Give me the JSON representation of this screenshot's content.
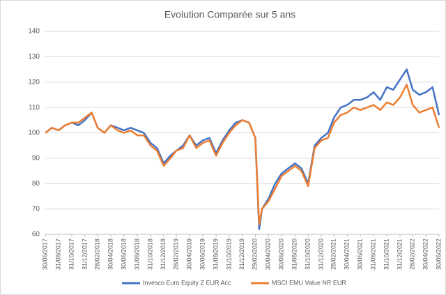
{
  "chart_data": {
    "type": "line",
    "title": "Evolution Comparée sur 5 ans",
    "x": [
      "30/06/2017",
      "31/07/2017",
      "31/08/2017",
      "30/09/2017",
      "31/10/2017",
      "30/11/2017",
      "31/12/2017",
      "31/01/2018",
      "28/02/2018",
      "31/03/2018",
      "30/04/2018",
      "31/05/2018",
      "30/06/2018",
      "31/07/2018",
      "31/08/2018",
      "30/09/2018",
      "31/10/2018",
      "30/11/2018",
      "31/12/2018",
      "31/01/2019",
      "28/02/2019",
      "31/03/2019",
      "30/04/2019",
      "31/05/2019",
      "30/06/2019",
      "31/07/2019",
      "31/08/2019",
      "30/09/2019",
      "31/10/2019",
      "30/11/2019",
      "31/12/2019",
      "31/01/2020",
      "29/02/2020",
      "18/03/2020",
      "31/03/2020",
      "30/04/2020",
      "31/05/2020",
      "30/06/2020",
      "31/07/2020",
      "31/08/2020",
      "30/09/2020",
      "31/10/2020",
      "30/11/2020",
      "31/12/2020",
      "31/01/2021",
      "28/02/2021",
      "31/03/2021",
      "30/04/2021",
      "31/05/2021",
      "30/06/2021",
      "31/07/2021",
      "31/08/2021",
      "30/09/2021",
      "31/10/2021",
      "30/11/2021",
      "31/12/2021",
      "31/01/2022",
      "28/02/2022",
      "31/03/2022",
      "30/04/2022",
      "31/05/2022",
      "30/06/2022"
    ],
    "series": [
      {
        "name": "Invesco Euro Equity Z EUR Acc",
        "color": "#4472c4",
        "values": [
          100,
          102,
          101,
          103,
          104,
          103,
          105,
          108,
          102,
          100,
          103,
          102,
          101,
          102,
          101,
          100,
          96,
          94,
          88,
          91,
          93,
          95,
          99,
          95,
          97,
          98,
          92,
          97,
          101,
          104,
          105,
          104,
          98,
          62,
          70,
          74,
          80,
          84,
          86,
          88,
          86,
          80,
          95,
          98,
          100,
          106,
          110,
          111,
          113,
          113,
          114,
          116,
          113,
          118,
          117,
          121,
          125,
          117,
          115,
          116,
          118,
          107
        ]
      },
      {
        "name": "MSCI EMU Value NR EUR",
        "color": "#ed7d31",
        "values": [
          100,
          102,
          101,
          103,
          104,
          104,
          106,
          108,
          102,
          100,
          103,
          101,
          100,
          101,
          99,
          99,
          95,
          93,
          87,
          90,
          93,
          94,
          99,
          94,
          96,
          97,
          91,
          96,
          100,
          103,
          105,
          104,
          98,
          64,
          70,
          73,
          78,
          83,
          85,
          87,
          85,
          79,
          94,
          97,
          98,
          104,
          107,
          108,
          110,
          109,
          110,
          111,
          109,
          112,
          111,
          114,
          119,
          111,
          108,
          109,
          110,
          102
        ]
      }
    ],
    "xlim": [
      "30/06/2017",
      "30/06/2022"
    ],
    "xticks": [
      "30/06/2017",
      "31/08/2017",
      "31/10/2017",
      "31/12/2017",
      "28/02/2018",
      "30/04/2018",
      "30/06/2018",
      "31/08/2018",
      "31/10/2018",
      "31/12/2018",
      "28/02/2019",
      "30/04/2019",
      "30/06/2019",
      "31/08/2019",
      "31/10/2019",
      "31/12/2019",
      "29/02/2020",
      "30/04/2020",
      "30/06/2020",
      "31/08/2020",
      "31/10/2020",
      "31/12/2020",
      "28/02/2021",
      "30/04/2021",
      "30/06/2021",
      "31/08/2021",
      "31/10/2021",
      "31/12/2021",
      "28/02/2022",
      "30/04/2022",
      "30/06/2022"
    ],
    "ylim": [
      60,
      140
    ],
    "yticks": [
      60,
      70,
      80,
      90,
      100,
      110,
      120,
      130,
      140
    ],
    "grid": true,
    "legend": "bottom"
  }
}
